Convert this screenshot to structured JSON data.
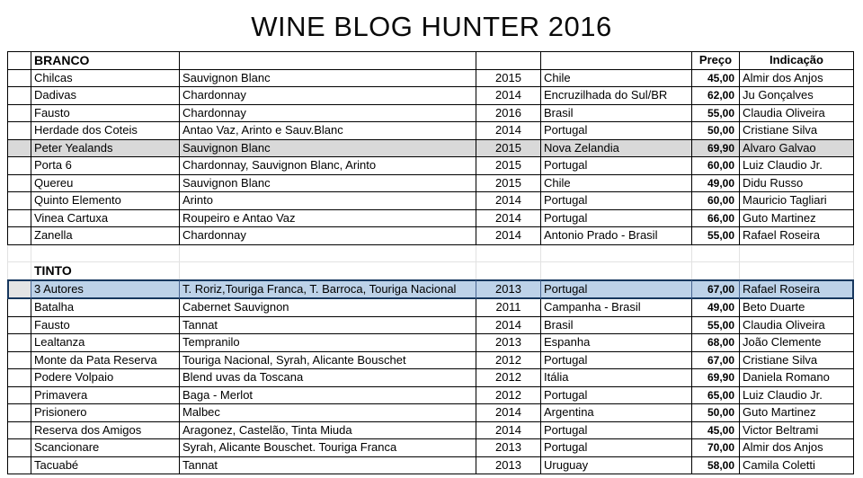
{
  "title": "WINE BLOG HUNTER 2016",
  "sheet": {
    "header": {
      "price": "Preço",
      "indication": "Indicação"
    },
    "sections": [
      {
        "label": "BRANCO",
        "rows": [
          {
            "name": "Chilcas",
            "grapes": "Sauvignon Blanc",
            "year": "2015",
            "origin": "Chile",
            "price": "45,00",
            "indication": "Almir dos Anjos",
            "highlight": "none"
          },
          {
            "name": "Dadivas",
            "grapes": "Chardonnay",
            "year": "2014",
            "origin": "Encruzilhada do Sul/BR",
            "price": "62,00",
            "indication": "Ju Gonçalves",
            "highlight": "none"
          },
          {
            "name": "Fausto",
            "grapes": "Chardonnay",
            "year": "2016",
            "origin": "Brasil",
            "price": "55,00",
            "indication": "Claudia Oliveira",
            "highlight": "none"
          },
          {
            "name": "Herdade dos Coteis",
            "grapes": "Antao Vaz, Arinto e Sauv.Blanc",
            "year": "2014",
            "origin": "Portugal",
            "price": "50,00",
            "indication": "Cristiane Silva",
            "highlight": "none"
          },
          {
            "name": "Peter Yealands",
            "grapes": "Sauvignon Blanc",
            "year": "2015",
            "origin": "Nova Zelandia",
            "price": "69,90",
            "indication": "Alvaro Galvao",
            "highlight": "gray"
          },
          {
            "name": "Porta 6",
            "grapes": "Chardonnay, Sauvignon Blanc,  Arinto",
            "year": "2015",
            "origin": "Portugal",
            "price": "60,00",
            "indication": "Luiz Claudio Jr.",
            "highlight": "none"
          },
          {
            "name": "Quereu",
            "grapes": "Sauvignon Blanc",
            "year": "2015",
            "origin": "Chile",
            "price": "49,00",
            "indication": "Didu Russo",
            "highlight": "none"
          },
          {
            "name": "Quinto Elemento",
            "grapes": "Arinto",
            "year": "2014",
            "origin": "Portugal",
            "price": "60,00",
            "indication": "Mauricio Tagliari",
            "highlight": "none"
          },
          {
            "name": "Vinea Cartuxa",
            "grapes": "Roupeiro e Antao Vaz",
            "year": "2014",
            "origin": "Portugal",
            "price": "66,00",
            "indication": "Guto Martinez",
            "highlight": "none"
          },
          {
            "name": "Zanella",
            "grapes": "Chardonnay",
            "year": "2014",
            "origin": "Antonio Prado - Brasil",
            "price": "55,00",
            "indication": "Rafael Roseira",
            "highlight": "none"
          }
        ]
      },
      {
        "label": "TINTO",
        "rows": [
          {
            "name": "3 Autores",
            "grapes": "T. Roriz,Touriga Franca, T. Barroca, Touriga Nacional",
            "year": "2013",
            "origin": "Portugal",
            "price": "67,00",
            "indication": "Rafael Roseira",
            "highlight": "selected"
          },
          {
            "name": "Batalha",
            "grapes": "Cabernet Sauvignon",
            "year": "2011",
            "origin": "Campanha - Brasil",
            "price": "49,00",
            "indication": "Beto Duarte",
            "highlight": "none"
          },
          {
            "name": "Fausto",
            "grapes": "Tannat",
            "year": "2014",
            "origin": "Brasil",
            "price": "55,00",
            "indication": "Claudia Oliveira",
            "highlight": "none"
          },
          {
            "name": "Lealtanza",
            "grapes": "Tempranilo",
            "year": "2013",
            "origin": "Espanha",
            "price": "68,00",
            "indication": "João Clemente",
            "highlight": "none"
          },
          {
            "name": "Monte da Pata Reserva",
            "grapes": "Touriga Nacional, Syrah, Alicante Bouschet",
            "year": "2012",
            "origin": "Portugal",
            "price": "67,00",
            "indication": "Cristiane Silva",
            "highlight": "none"
          },
          {
            "name": "Podere Volpaio",
            "grapes": "Blend uvas da Toscana",
            "year": "2012",
            "origin": "Itália",
            "price": "69,90",
            "indication": "Daniela Romano",
            "highlight": "none"
          },
          {
            "name": "Primavera",
            "grapes": "Baga - Merlot",
            "year": "2012",
            "origin": "Portugal",
            "price": "65,00",
            "indication": "Luiz Claudio Jr.",
            "highlight": "none"
          },
          {
            "name": "Prisionero",
            "grapes": "Malbec",
            "year": "2014",
            "origin": "Argentina",
            "price": "50,00",
            "indication": "Guto Martinez",
            "highlight": "none"
          },
          {
            "name": "Reserva dos Amigos",
            "grapes": "Aragonez, Castelão, Tinta Miuda",
            "year": "2014",
            "origin": "Portugal",
            "price": "45,00",
            "indication": "Victor Beltrami",
            "highlight": "none"
          },
          {
            "name": "Scancionare",
            "grapes": "Syrah, Alicante Bouschet. Touriga Franca",
            "year": "2013",
            "origin": "Portugal",
            "price": "70,00",
            "indication": "Almir dos Anjos",
            "highlight": "none"
          },
          {
            "name": "Tacuabé",
            "grapes": "Tannat",
            "year": "2013",
            "origin": "Uruguay",
            "price": "58,00",
            "indication": "Camila Coletti",
            "highlight": "none"
          }
        ]
      }
    ]
  },
  "colors": {
    "selected_fill": "#bdd2e8",
    "selected_border": "#17375e",
    "highlight_gray": "#d9d9d9"
  }
}
